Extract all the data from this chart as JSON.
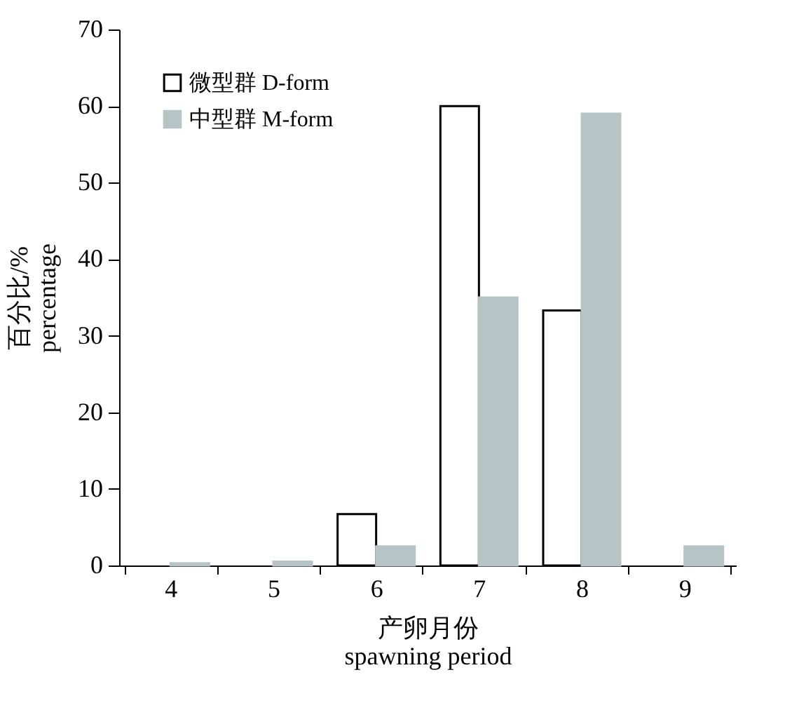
{
  "chart_data": {
    "type": "bar",
    "xlabel": "产卵月份\nspawning period",
    "ylabel": "百分比/%\npercentage",
    "categories": [
      "4",
      "5",
      "6",
      "7",
      "8",
      "9"
    ],
    "series": [
      {
        "name": "微型群 D-form",
        "color": "#ffffff",
        "values": [
          0,
          0,
          6.7,
          60,
          33.3,
          0
        ]
      },
      {
        "name": "中型群 M-form",
        "color": "#b7c4c6",
        "values": [
          0.3,
          0.5,
          2.5,
          35,
          59,
          2.5
        ]
      }
    ],
    "ylim": [
      0,
      70
    ],
    "yticks": [
      0,
      10,
      20,
      30,
      40,
      50,
      60,
      70
    ],
    "grid": false,
    "legend": "top left"
  }
}
